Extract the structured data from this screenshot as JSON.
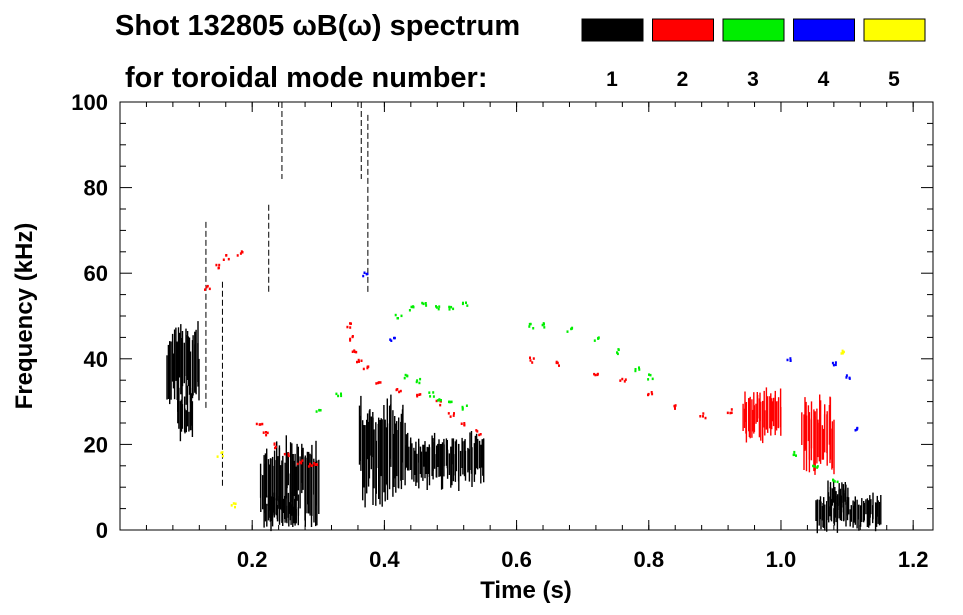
{
  "chart_data": {
    "type": "scatter",
    "title_line1": "Shot 132805 ωB(ω) spectrum",
    "title_line2": "for toroidal mode number:",
    "xlabel": "Time (s)",
    "ylabel": "Frequency (kHz)",
    "xlim": [
      0.0,
      1.23
    ],
    "ylim": [
      0,
      100
    ],
    "xticks": [
      0.2,
      0.4,
      0.6,
      0.8,
      1.0,
      1.2
    ],
    "xtick_labels": [
      "0.2",
      "0.4",
      "0.6",
      "0.8",
      "1.0",
      "1.2"
    ],
    "yticks": [
      0,
      20,
      40,
      60,
      80,
      100
    ],
    "ytick_labels": [
      "0",
      "20",
      "40",
      "60",
      "80",
      "100"
    ],
    "legend": [
      {
        "label": "1",
        "color": "#000000"
      },
      {
        "label": "2",
        "color": "#ff0000"
      },
      {
        "label": "3",
        "color": "#00ee00"
      },
      {
        "label": "4",
        "color": "#0000ff"
      },
      {
        "label": "5",
        "color": "#ffff00"
      }
    ],
    "series": [
      {
        "name": "n=1",
        "color": "#000000",
        "blobs": [
          {
            "t0": 0.07,
            "t1": 0.12,
            "f0": 30,
            "f1": 47
          },
          {
            "t0": 0.085,
            "t1": 0.11,
            "f0": 22,
            "f1": 32
          },
          {
            "t0": 0.21,
            "t1": 0.3,
            "f0": 3,
            "f1": 20
          },
          {
            "t0": 0.22,
            "t1": 0.27,
            "f0": 1,
            "f1": 8
          },
          {
            "t0": 0.36,
            "t1": 0.43,
            "f0": 8,
            "f1": 30
          },
          {
            "t0": 0.43,
            "t1": 0.55,
            "f0": 11,
            "f1": 22
          },
          {
            "t0": 1.05,
            "t1": 1.15,
            "f0": 0.5,
            "f1": 8
          },
          {
            "t0": 1.07,
            "t1": 1.1,
            "f0": 5,
            "f1": 11
          }
        ],
        "lines": [
          {
            "t": 0.225,
            "f0": 55,
            "f1": 76
          },
          {
            "t": 0.245,
            "f0": 82,
            "f1": 100
          },
          {
            "t": 0.365,
            "f0": 82,
            "f1": 100
          },
          {
            "t": 0.375,
            "f0": 55,
            "f1": 97
          },
          {
            "t": 0.13,
            "f0": 28,
            "f1": 72
          },
          {
            "t": 0.155,
            "f0": 10,
            "f1": 58
          }
        ]
      },
      {
        "name": "n=2",
        "color": "#ff0000",
        "points": [
          [
            0.21,
            25
          ],
          [
            0.22,
            23
          ],
          [
            0.235,
            20
          ],
          [
            0.25,
            18
          ],
          [
            0.27,
            16
          ],
          [
            0.285,
            15.5
          ],
          [
            0.295,
            16
          ],
          [
            0.345,
            48
          ],
          [
            0.35,
            45
          ],
          [
            0.355,
            42
          ],
          [
            0.36,
            40
          ],
          [
            0.37,
            38
          ],
          [
            0.39,
            35
          ],
          [
            0.42,
            33
          ],
          [
            0.45,
            32
          ],
          [
            0.48,
            30
          ],
          [
            0.5,
            27
          ],
          [
            0.52,
            25
          ],
          [
            0.54,
            23
          ],
          [
            0.62,
            40
          ],
          [
            0.66,
            39
          ],
          [
            0.72,
            37
          ],
          [
            0.76,
            35
          ],
          [
            0.8,
            32
          ],
          [
            0.84,
            29
          ],
          [
            0.88,
            27
          ],
          [
            0.92,
            28
          ],
          [
            0.145,
            62
          ],
          [
            0.16,
            64
          ],
          [
            0.18,
            65
          ],
          [
            0.13,
            57
          ]
        ],
        "blobs": [
          {
            "t0": 1.03,
            "t1": 1.08,
            "f0": 14,
            "f1": 30
          },
          {
            "t0": 0.94,
            "t1": 1.0,
            "f0": 22,
            "f1": 32
          }
        ]
      },
      {
        "name": "n=3",
        "color": "#00ee00",
        "points": [
          [
            0.42,
            50
          ],
          [
            0.44,
            52
          ],
          [
            0.46,
            53
          ],
          [
            0.48,
            52
          ],
          [
            0.5,
            52
          ],
          [
            0.52,
            53
          ],
          [
            0.43,
            36
          ],
          [
            0.45,
            35
          ],
          [
            0.47,
            32
          ],
          [
            0.48,
            31
          ],
          [
            0.5,
            30
          ],
          [
            0.52,
            29
          ],
          [
            0.62,
            48
          ],
          [
            0.64,
            48
          ],
          [
            0.68,
            47
          ],
          [
            0.72,
            45
          ],
          [
            0.75,
            42
          ],
          [
            0.78,
            38
          ],
          [
            0.8,
            36
          ],
          [
            0.3,
            28
          ],
          [
            0.33,
            32
          ],
          [
            1.02,
            18
          ],
          [
            1.05,
            15
          ],
          [
            1.08,
            12
          ]
        ]
      },
      {
        "name": "n=4",
        "color": "#0000ff",
        "points": [
          [
            0.41,
            45
          ],
          [
            1.01,
            40
          ],
          [
            1.08,
            39
          ],
          [
            1.1,
            36
          ],
          [
            1.11,
            24
          ],
          [
            0.37,
            60
          ]
        ]
      },
      {
        "name": "n=5",
        "color": "#ffff00",
        "points": [
          [
            0.17,
            6
          ],
          [
            1.09,
            42
          ],
          [
            0.15,
            18
          ]
        ]
      }
    ]
  }
}
